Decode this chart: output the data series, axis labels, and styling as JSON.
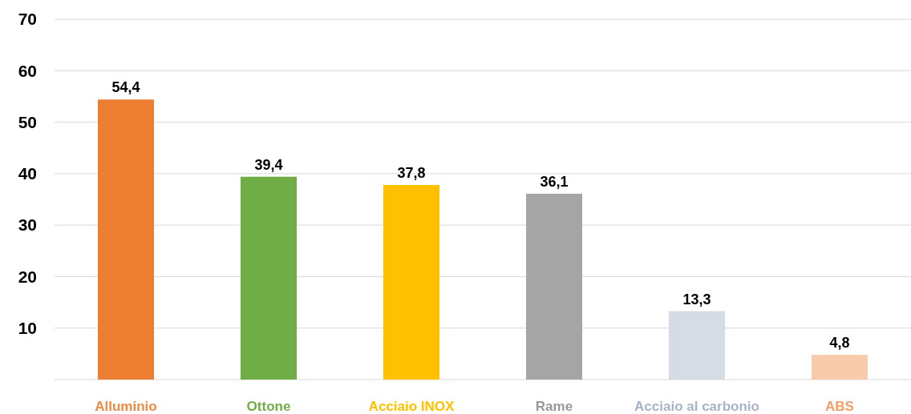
{
  "chart_data": {
    "type": "bar",
    "categories": [
      "Alluminio",
      "Ottone",
      "Acciaio INOX",
      "Rame",
      "Acciaio al carbonio",
      "ABS"
    ],
    "values": [
      54.4,
      39.4,
      37.8,
      36.1,
      13.3,
      4.8
    ],
    "colors": [
      "#ed7d31",
      "#70ad47",
      "#ffc000",
      "#a5a5a5",
      "#d6dce5",
      "#f8cbad"
    ],
    "value_labels": [
      "54,4",
      "39,4",
      "37,8",
      "36,1",
      "13,3",
      "4,8"
    ],
    "ylim": [
      0,
      70
    ],
    "yticks": [
      {
        "value": 0,
        "label": null
      },
      10,
      20,
      30,
      40,
      50,
      60,
      70
    ],
    "grid": "y"
  }
}
